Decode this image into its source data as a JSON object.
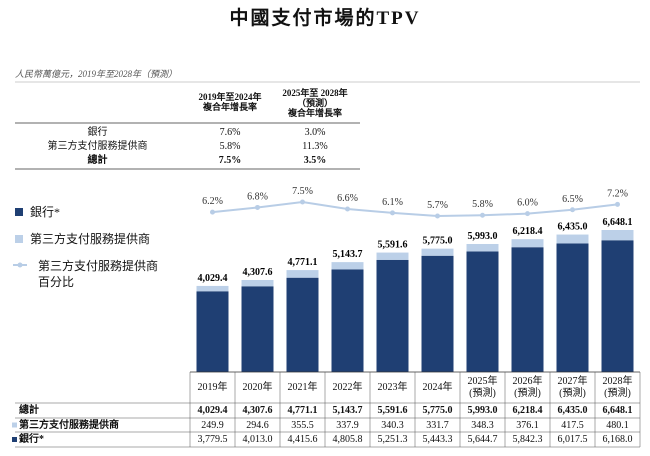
{
  "chart_data": {
    "type": "bar",
    "title": "中國支付市場的TPV",
    "subtitle": "人民幣萬億元，2019年至2028年（預測）",
    "cagr_table": {
      "columns": [
        "2019年至2024年 複合年增長率",
        "2025年至 2028年（預測） 複合年增長率"
      ],
      "rows": [
        {
          "label": "銀行",
          "cells": [
            "7.6%",
            "3.0%"
          ]
        },
        {
          "label": "第三方支付服務提供商",
          "cells": [
            "5.8%",
            "11.3%"
          ]
        },
        {
          "label": "總計",
          "cells": [
            "7.5%",
            "3.5%"
          ]
        }
      ]
    },
    "categories": [
      "2019年",
      "2020年",
      "2021年",
      "2022年",
      "2023年",
      "2024年",
      "2025年 (預測)",
      "2026年 (預測)",
      "2027年 (預測)",
      "2028年 (預測)"
    ],
    "series": [
      {
        "name": "銀行*",
        "color": "#1f3f73",
        "values": [
          3779.5,
          4013.0,
          4415.6,
          4805.8,
          5251.3,
          5443.3,
          5644.7,
          5842.3,
          6017.5,
          6168.0
        ],
        "value_labels": [
          "3,779.5",
          "4,013.0",
          "4,415.6",
          "4,805.8",
          "5,251.3",
          "5,443.3",
          "5,644.7",
          "5,842.3",
          "6,017.5",
          "6,168.0"
        ]
      },
      {
        "name": "第三方支付服務提供商",
        "color": "#bcd0e8",
        "values": [
          249.9,
          294.6,
          355.5,
          337.9,
          340.3,
          331.7,
          348.3,
          376.1,
          417.5,
          480.1
        ],
        "value_labels": [
          "249.9",
          "294.6",
          "355.5",
          "337.9",
          "340.3",
          "331.7",
          "348.3",
          "376.1",
          "417.5",
          "480.1"
        ]
      }
    ],
    "total": {
      "name": "總計",
      "values": [
        4029.4,
        4307.6,
        4771.1,
        5143.7,
        5591.6,
        5775.0,
        5993.0,
        6218.4,
        6435.0,
        6648.1
      ],
      "value_labels": [
        "4,029.4",
        "4,307.6",
        "4,771.1",
        "5,143.7",
        "5,591.6",
        "5,775.0",
        "5,993.0",
        "6,218.4",
        "6,435.0",
        "6,648.1"
      ]
    },
    "line": {
      "name": "第三方支付服務提供商百分比",
      "color": "#b8cde6",
      "values": [
        6.2,
        6.8,
        7.5,
        6.6,
        6.1,
        5.7,
        5.8,
        6.0,
        6.5,
        7.2
      ],
      "value_labels": [
        "6.2%",
        "6.8%",
        "7.5%",
        "6.6%",
        "6.1%",
        "5.7%",
        "5.8%",
        "6.0%",
        "6.5%",
        "7.2%"
      ]
    }
  }
}
